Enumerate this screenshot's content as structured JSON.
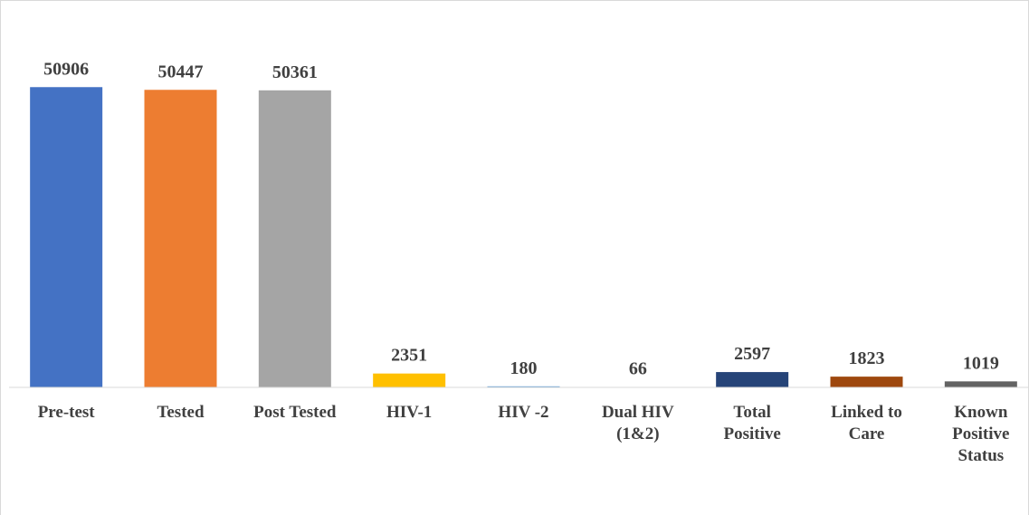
{
  "chart_data": {
    "type": "bar",
    "categories": [
      "Pre-test",
      "Tested",
      "Post Tested",
      "HIV-1",
      "HIV -2",
      "Dual HIV\n(1&2)",
      "Total\nPositive",
      "Linked to\nCare",
      "Known\nPositive\nStatus"
    ],
    "values": [
      50906,
      50447,
      50361,
      2351,
      180,
      66,
      2597,
      1823,
      1019
    ],
    "colors": [
      "#4472c4",
      "#ed7d31",
      "#a5a5a5",
      "#ffc000",
      "#5b9bd5",
      "#70ad47",
      "#264478",
      "#9e480e",
      "#636363"
    ],
    "ylim": [
      0,
      60000
    ]
  }
}
